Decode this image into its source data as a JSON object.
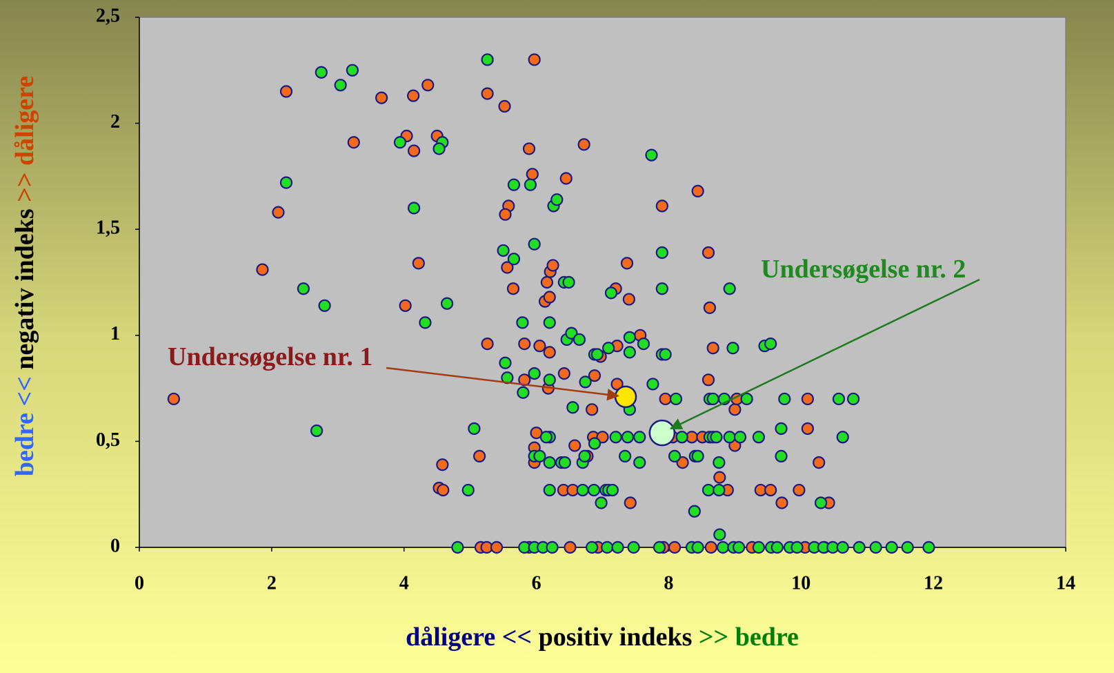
{
  "chart_data": {
    "type": "scatter",
    "xlim": [
      0,
      14
    ],
    "xticks": [
      0,
      2,
      4,
      6,
      8,
      10,
      12,
      14
    ],
    "ylim": [
      0,
      2.5
    ],
    "yticks": [
      0,
      {
        "value": 0.5,
        "label": "0,5"
      },
      1,
      {
        "value": 1.5,
        "label": "1,5"
      },
      2,
      {
        "value": 2.5,
        "label": "2,5"
      }
    ],
    "x_label": [
      {
        "text": "dåligere <<",
        "color": "#000080"
      },
      {
        "text": " positiv indeks ",
        "color": "#000000"
      },
      {
        "text": ">> bedre",
        "color": "#008000"
      }
    ],
    "y_label": [
      {
        "text": "bedre <<",
        "color": "#3366ff"
      },
      {
        "text": " negativ indeks ",
        "color": "#000000"
      },
      {
        "text": ">> dåligere",
        "color": "#cc4400"
      }
    ],
    "series": [
      {
        "color": "#f26b1d",
        "x": [
          0.52,
          1.86,
          2.1,
          2.22,
          3.24,
          3.66,
          4.04,
          4.15,
          4.14,
          4.36,
          4.22,
          4.02,
          4.5,
          4.58,
          4.53,
          4.59,
          5.14,
          5.26,
          5.26,
          5.52,
          5.58,
          5.53,
          5.56,
          5.65,
          5.82,
          5.82,
          5.89,
          5.94,
          5.97,
          5.97,
          5.97,
          6.0,
          6.05,
          6.16,
          6.13,
          6.2,
          6.21,
          6.25,
          6.2,
          6.18,
          6.45,
          6.42,
          6.41,
          6.55,
          6.58,
          6.72,
          6.77,
          6.84,
          6.88,
          6.86,
          6.97,
          7.0,
          7.2,
          7.22,
          7.22,
          7.37,
          7.4,
          7.42,
          7.57,
          7.9,
          7.95,
          8.06,
          8.21,
          8.35,
          8.44,
          8.51,
          8.6,
          8.6,
          8.62,
          8.67,
          8.77,
          8.89,
          9.0,
          9.0,
          9.03,
          9.39,
          9.54,
          9.71,
          9.97,
          10.1,
          10.1,
          10.27,
          10.42,
          5.16,
          5.25,
          5.4,
          5.89,
          6.51,
          6.93,
          7.92,
          8.09,
          8.64,
          9.26,
          10.06,
          10.35
        ],
        "y": [
          0.7,
          1.31,
          1.58,
          2.15,
          1.91,
          2.12,
          1.94,
          1.87,
          2.13,
          2.18,
          1.34,
          1.14,
          1.94,
          0.39,
          0.28,
          0.27,
          0.43,
          2.14,
          0.96,
          2.08,
          1.61,
          1.57,
          1.32,
          1.22,
          0.96,
          0.79,
          1.88,
          1.76,
          2.3,
          0.47,
          0.4,
          0.54,
          0.95,
          1.25,
          1.16,
          1.18,
          1.3,
          1.33,
          0.92,
          0.75,
          1.74,
          0.82,
          0.27,
          0.27,
          0.48,
          1.9,
          0.43,
          0.65,
          0.81,
          0.52,
          0.9,
          0.52,
          1.22,
          0.77,
          0.95,
          1.34,
          1.17,
          0.21,
          1.0,
          1.61,
          0.7,
          0.52,
          0.4,
          0.52,
          1.68,
          0.52,
          0.79,
          1.39,
          1.13,
          0.94,
          0.33,
          0.27,
          0.65,
          0.48,
          0.7,
          0.27,
          0.27,
          0.21,
          0.27,
          0.7,
          0.56,
          0.4,
          0.21,
          0,
          0,
          0,
          0,
          0,
          0,
          0,
          0,
          0,
          0,
          0,
          0
        ]
      },
      {
        "color": "#22dd22",
        "x": [
          2.48,
          2.22,
          2.75,
          3.04,
          3.22,
          2.8,
          2.68,
          3.94,
          4.15,
          4.32,
          4.58,
          4.53,
          4.65,
          5.06,
          4.97,
          5.26,
          5.5,
          5.53,
          5.56,
          5.66,
          5.66,
          5.79,
          5.8,
          5.91,
          5.97,
          5.97,
          5.97,
          6.05,
          6.2,
          6.2,
          6.2,
          6.15,
          6.2,
          6.2,
          6.26,
          6.31,
          6.38,
          6.43,
          6.42,
          6.49,
          6.46,
          6.53,
          6.55,
          6.65,
          6.7,
          6.73,
          6.74,
          6.7,
          6.87,
          6.88,
          6.92,
          6.88,
          6.98,
          7.05,
          7.09,
          7.15,
          7.09,
          7.13,
          7.2,
          7.34,
          7.38,
          7.41,
          7.41,
          7.41,
          7.56,
          7.56,
          7.62,
          7.74,
          7.76,
          7.9,
          7.9,
          7.9,
          7.95,
          8.11,
          8.09,
          8.2,
          8.4,
          8.44,
          8.39,
          8.6,
          8.62,
          8.67,
          8.62,
          8.67,
          8.72,
          8.76,
          8.76,
          8.77,
          8.84,
          8.92,
          8.97,
          8.92,
          9.08,
          9.18,
          9.36,
          9.45,
          9.54,
          9.7,
          9.7,
          9.75,
          10.3,
          10.57,
          10.63,
          10.79,
          7.38,
          4.81,
          5.82,
          5.97,
          6.1,
          6.24,
          6.84,
          7.07,
          7.23,
          7.47,
          7.86,
          8.35,
          8.44,
          8.82,
          8.98,
          9.06,
          9.36,
          9.55,
          9.64,
          9.83,
          9.94,
          10.2,
          10.34,
          10.48,
          10.63,
          10.88,
          11.13,
          11.37,
          11.61,
          11.93
        ],
        "y": [
          1.22,
          1.72,
          2.24,
          2.18,
          2.25,
          1.14,
          0.55,
          1.91,
          1.6,
          1.06,
          1.91,
          1.88,
          1.15,
          0.56,
          0.27,
          2.3,
          1.4,
          0.87,
          0.8,
          1.36,
          1.71,
          1.06,
          0.73,
          1.71,
          1.43,
          0.82,
          0.43,
          0.43,
          1.06,
          0.79,
          0.52,
          0.52,
          0.4,
          0.27,
          1.61,
          1.64,
          0.4,
          0.4,
          1.25,
          1.25,
          0.98,
          1.01,
          0.66,
          0.98,
          0.4,
          0.43,
          0.78,
          0.27,
          0.27,
          0.91,
          0.91,
          0.49,
          0.21,
          0.27,
          0.27,
          0.27,
          0.94,
          1.2,
          0.52,
          0.43,
          0.52,
          0.65,
          0.92,
          0.99,
          0.52,
          0.4,
          0.96,
          1.85,
          0.77,
          1.39,
          1.22,
          0.91,
          0.91,
          0.7,
          0.43,
          0.52,
          0.43,
          0.43,
          0.17,
          0.27,
          0.7,
          0.7,
          0.52,
          0.52,
          0.52,
          0.27,
          0.4,
          0.06,
          0.7,
          1.22,
          0.94,
          0.52,
          0.52,
          0.7,
          0.52,
          0.95,
          0.96,
          0.56,
          0.43,
          0.7,
          0.21,
          0.7,
          0.52,
          0.7,
          0.7,
          0,
          0,
          0,
          0,
          0,
          0,
          0,
          0,
          0,
          0,
          0,
          0,
          0,
          0,
          0,
          0,
          0,
          0,
          0,
          0,
          0,
          0,
          0,
          0,
          0,
          0,
          0,
          0,
          0
        ]
      }
    ],
    "highlights": [
      {
        "x": 7.35,
        "y": 0.71,
        "color": "#ffe600"
      },
      {
        "x": 7.9,
        "y": 0.54,
        "color": "#ccffcc"
      }
    ],
    "annotations": [
      {
        "text": "Undersøgelse nr. 1",
        "color": "#8b1a1a",
        "arrow_color": "#a03c10"
      },
      {
        "text": "Undersøgelse nr. 2",
        "color": "#1f8a1f",
        "arrow_color": "#1f7a1f"
      }
    ]
  }
}
